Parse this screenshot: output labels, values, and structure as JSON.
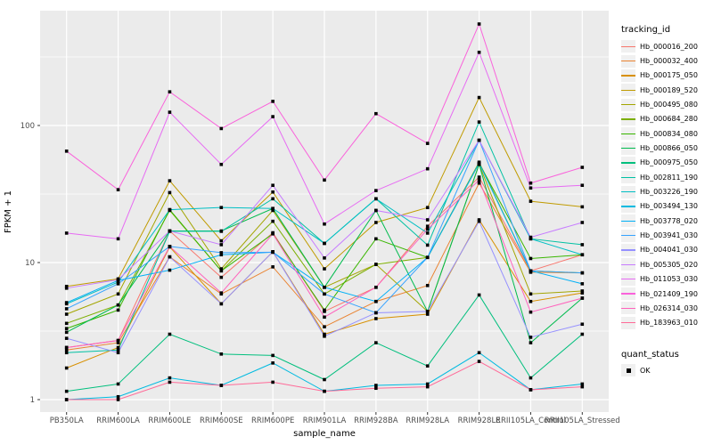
{
  "chart_data": {
    "type": "line",
    "title": "",
    "xlabel": "sample_name",
    "ylabel": "FPKM + 1",
    "y_scale": "log10",
    "y_ticks": [
      1,
      10,
      100
    ],
    "y_minor_ticks": [
      3.1623,
      31.623,
      316.23
    ],
    "ylim": [
      0.85,
      650
    ],
    "grid": "white major and minor gridlines on gray panel",
    "legend_position": "right",
    "panel_bg": "#EBEBEB",
    "grid_color": "#FFFFFF",
    "point_marker": {
      "shape": "black-square",
      "meaning": "quant_status OK",
      "color": "#000000"
    },
    "categories": [
      "PB350LA",
      "RRIM600LA",
      "RRIM600LE",
      "RRIM600SE",
      "RRIM600PE",
      "RRIM901LA",
      "RRIM928BA",
      "RRIM928LA",
      "RRIM928LE",
      "RRII105LA_Control",
      "RRII105LA_Stressed"
    ],
    "series": [
      {
        "name": "Hb_000016_200",
        "color": "#F8766D",
        "values": [
          2.4,
          2.7,
          17.0,
          7.8,
          16.5,
          4.4,
          6.6,
          18.4,
          42,
          8.7,
          11.4
        ]
      },
      {
        "name": "Hb_000032_400",
        "color": "#EA8331",
        "values": [
          2.3,
          2.6,
          11.0,
          5.9,
          9.3,
          3.4,
          5.2,
          6.8,
          38,
          8.5,
          8.4
        ]
      },
      {
        "name": "Hb_000175_050",
        "color": "#D89000",
        "values": [
          1.7,
          2.4,
          13.0,
          5.0,
          12.0,
          3.0,
          3.9,
          4.2,
          20.5,
          5.2,
          6.0
        ]
      },
      {
        "name": "Hb_000189_520",
        "color": "#C09B00",
        "values": [
          6.7,
          7.6,
          39.5,
          14.4,
          32.7,
          9.0,
          19.6,
          25.2,
          160,
          28,
          25.5
        ]
      },
      {
        "name": "Hb_000495_080",
        "color": "#A3A500",
        "values": [
          4.2,
          5.9,
          32.4,
          9.0,
          24.0,
          6.6,
          9.7,
          4.4,
          52,
          5.9,
          6.2
        ]
      },
      {
        "name": "Hb_000684_280",
        "color": "#7CAE00",
        "values": [
          3.6,
          4.9,
          24.0,
          8.7,
          20.0,
          5.9,
          9.7,
          10.9,
          54,
          8.7,
          8.4
        ]
      },
      {
        "name": "Hb_000834_080",
        "color": "#39B600",
        "values": [
          3.3,
          4.5,
          24.3,
          8.7,
          16.2,
          4.5,
          14.9,
          10.9,
          53,
          10.7,
          11.4
        ]
      },
      {
        "name": "Hb_000866_050",
        "color": "#00BB4E",
        "values": [
          3.1,
          4.9,
          17.0,
          17.0,
          24.8,
          6.6,
          24.0,
          4.4,
          52,
          2.6,
          5.5
        ]
      },
      {
        "name": "Hb_000975_050",
        "color": "#00BF7D",
        "values": [
          1.15,
          1.3,
          3.0,
          2.15,
          2.1,
          1.4,
          2.6,
          1.76,
          5.8,
          1.44,
          3.0
        ]
      },
      {
        "name": "Hb_002811_190",
        "color": "#00C1A3",
        "values": [
          2.2,
          2.3,
          16.9,
          16.9,
          29.2,
          13.8,
          29.2,
          13.4,
          106,
          14.9,
          13.5
        ]
      },
      {
        "name": "Hb_003226_190",
        "color": "#00BFC4",
        "values": [
          5.0,
          7.2,
          24.3,
          25.2,
          24.8,
          13.8,
          29.2,
          16.4,
          78,
          14.9,
          11.4
        ]
      },
      {
        "name": "Hb_003494_130",
        "color": "#00BAE0",
        "values": [
          1.0,
          1.05,
          1.44,
          1.27,
          1.85,
          1.15,
          1.27,
          1.3,
          2.2,
          1.18,
          1.3
        ]
      },
      {
        "name": "Hb_003778_020",
        "color": "#00B0F6",
        "values": [
          5.1,
          7.4,
          8.8,
          11.4,
          11.9,
          6.6,
          5.2,
          10.9,
          53,
          8.7,
          7.0
        ]
      },
      {
        "name": "Hb_003941_030",
        "color": "#35A2FF",
        "values": [
          4.6,
          7.0,
          13.1,
          11.8,
          11.9,
          5.9,
          4.3,
          10.9,
          78,
          8.7,
          8.4
        ]
      },
      {
        "name": "Hb_004041_030",
        "color": "#9590FF",
        "values": [
          2.8,
          2.2,
          11.0,
          5.0,
          12.0,
          2.9,
          4.3,
          4.4,
          20,
          2.85,
          3.55
        ]
      },
      {
        "name": "Hb_005305_020",
        "color": "#C77CFF",
        "values": [
          6.5,
          7.5,
          17.0,
          13.5,
          36.6,
          10.8,
          24.0,
          20.5,
          78,
          15.3,
          19.6
        ]
      },
      {
        "name": "Hb_011053_030",
        "color": "#E76BF3",
        "values": [
          16.4,
          14.9,
          125,
          52,
          116,
          19.1,
          33.5,
          48.3,
          342,
          35,
          36.6
        ]
      },
      {
        "name": "Hb_021409_190",
        "color": "#FA62DB",
        "values": [
          65,
          34,
          176,
          95,
          150,
          40,
          122,
          74,
          550,
          38,
          49.5
        ]
      },
      {
        "name": "Hb_026314_030",
        "color": "#FF62BC",
        "values": [
          2.4,
          2.7,
          13.1,
          6.0,
          16.2,
          4.0,
          6.6,
          17.5,
          40,
          4.35,
          5.5
        ]
      },
      {
        "name": "Hb_183963_010",
        "color": "#FF6A98",
        "values": [
          1.0,
          1.0,
          1.34,
          1.27,
          1.34,
          1.15,
          1.21,
          1.24,
          1.9,
          1.18,
          1.24
        ]
      }
    ]
  },
  "legend": {
    "tracking_title": "tracking_id",
    "quant_title": "quant_status",
    "quant_ok_label": "OK"
  }
}
